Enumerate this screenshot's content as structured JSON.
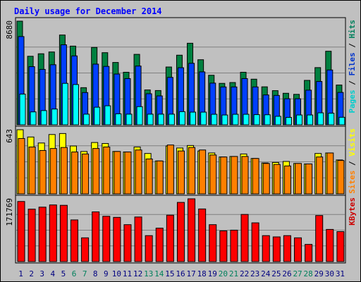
{
  "chart_data": {
    "type": "bar",
    "title": "Daily usage for December 2014",
    "days": [
      "1",
      "2",
      "3",
      "4",
      "5",
      "6",
      "7",
      "8",
      "9",
      "10",
      "11",
      "12",
      "13",
      "14",
      "15",
      "16",
      "17",
      "18",
      "19",
      "20",
      "21",
      "22",
      "23",
      "24",
      "25",
      "26",
      "27",
      "28",
      "29",
      "30",
      "31"
    ],
    "weekend_days": [
      "6",
      "7",
      "13",
      "14",
      "20",
      "21",
      "27",
      "28"
    ],
    "panels": [
      {
        "name": "top",
        "max_label": "8680",
        "ymax": 8680,
        "legend": [
          "Pages",
          "Files",
          "Hits"
        ],
        "legend_colors": [
          "#00cccc",
          "#0033cc",
          "#00805c"
        ],
        "series": [
          {
            "name": "Hits",
            "color": "#008040",
            "values": [
              8680,
              5740,
              5950,
              6100,
              7520,
              6590,
              3110,
              6480,
              6040,
              5220,
              4400,
              5900,
              2920,
              2870,
              4840,
              5830,
              6830,
              5450,
              4150,
              3470,
              3540,
              4400,
              3820,
              3180,
              2860,
              2640,
              2550,
              3720,
              4790,
              6160,
              3330
            ]
          },
          {
            "name": "Files",
            "color": "#0040ff",
            "values": [
              7390,
              4870,
              4640,
              5030,
              6700,
              5770,
              2700,
              5080,
              4890,
              4250,
              3870,
              4920,
              2600,
              2420,
              3970,
              4780,
              5150,
              4430,
              3490,
              3170,
              3170,
              3870,
              3170,
              2500,
              2460,
              2180,
              2180,
              2900,
              3630,
              4590,
              2710
            ]
          },
          {
            "name": "Pages",
            "color": "#00ffff",
            "values": [
              2570,
              1080,
              1190,
              1320,
              3470,
              3370,
              890,
              1470,
              1590,
              920,
              890,
              1520,
              890,
              890,
              890,
              1100,
              1060,
              1060,
              880,
              820,
              880,
              880,
              850,
              840,
              710,
              620,
              820,
              820,
              1000,
              970,
              630
            ]
          }
        ]
      },
      {
        "name": "middle",
        "max_label": "643",
        "ymax": 643,
        "legend": [
          "Sites",
          "Visits"
        ],
        "legend_colors": [
          "#ff8000",
          "#ffff00"
        ],
        "series": [
          {
            "name": "Visits",
            "color": "#ffff00",
            "values": [
              643,
              570,
              510,
              595,
              605,
              480,
              425,
              515,
              505,
              425,
              420,
              470,
              405,
              330,
              480,
              460,
              485,
              430,
              410,
              370,
              375,
              400,
              355,
              310,
              315,
              325,
              305,
              300,
              405,
              410,
              340
            ]
          },
          {
            "name": "Sites",
            "color": "#ff8000",
            "values": [
              555,
              470,
              435,
              455,
              465,
              420,
              400,
              455,
              470,
              425,
              420,
              440,
              350,
              330,
              490,
              430,
              465,
              440,
              390,
              370,
              375,
              375,
              355,
              305,
              295,
              280,
              305,
              300,
              370,
              410,
              335
            ]
          }
        ]
      },
      {
        "name": "bottom",
        "max_label": "171769",
        "ymax": 171769,
        "legend": [
          "KBytes"
        ],
        "legend_colors": [
          "#cc0000"
        ],
        "series": [
          {
            "name": "KBytes",
            "color": "#ff0000",
            "values": [
              164500,
              143500,
              149000,
              155000,
              154000,
              114000,
              65000,
              136000,
              124000,
              121000,
              101000,
              122000,
              71000,
              91500,
              127000,
              162000,
              171769,
              144000,
              101000,
              84000,
              86000,
              129000,
              106000,
              71000,
              67500,
              71000,
              65000,
              47000,
              126000,
              88000,
              82000
            ]
          }
        ]
      }
    ]
  },
  "colors": {
    "background": "#c0c0c0",
    "border": "#000000",
    "title": "#0000ff",
    "day_label": "#000080",
    "weekend_label": "#00805c",
    "gridline": "#808080",
    "legend_separator": "#000000"
  }
}
